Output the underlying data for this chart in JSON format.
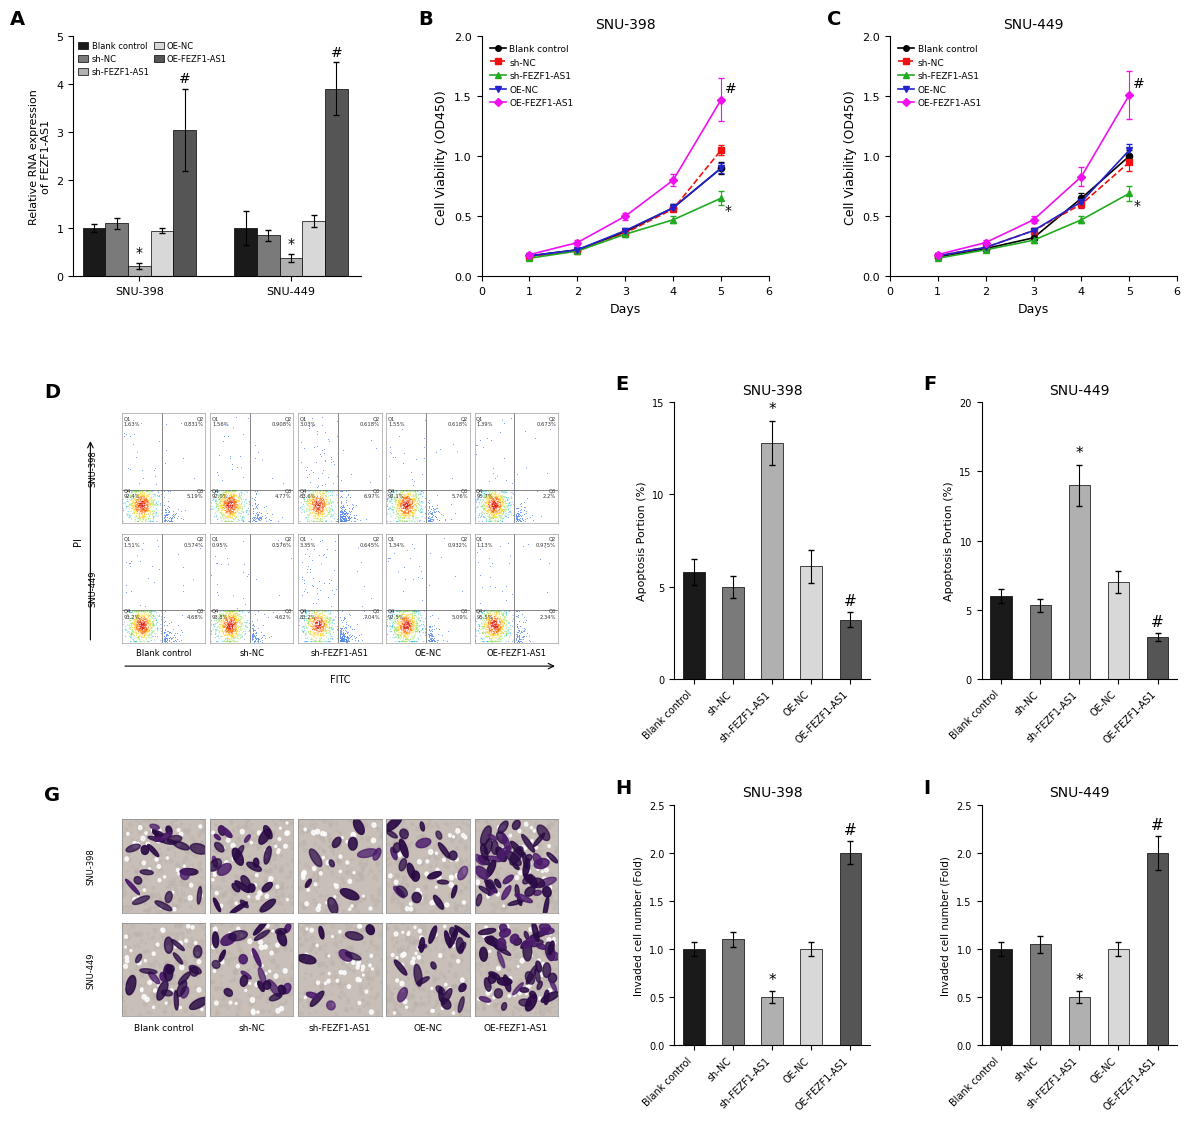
{
  "panel_A": {
    "ylabel": "Relative RNA expression\nof FEZF1-AS1",
    "categories": [
      "Blank control",
      "sh-NC",
      "sh-FEZF1-AS1",
      "OE-NC",
      "OE-FEZF1-AS1"
    ],
    "bar_colors": [
      "#1a1a1a",
      "#7a7a7a",
      "#b0b0b0",
      "#d8d8d8",
      "#555555"
    ],
    "snu398_values": [
      1.0,
      1.1,
      0.22,
      0.95,
      3.05
    ],
    "snu398_errors": [
      0.08,
      0.12,
      0.06,
      0.06,
      0.85
    ],
    "snu449_values": [
      1.0,
      0.85,
      0.38,
      1.15,
      3.9
    ],
    "snu449_errors": [
      0.35,
      0.12,
      0.08,
      0.12,
      0.55
    ],
    "ylim": [
      0,
      5
    ],
    "yticks": [
      0,
      1,
      2,
      3,
      4,
      5
    ]
  },
  "panel_B": {
    "title": "SNU-398",
    "xlabel": "Days",
    "ylabel": "Cell Viability (OD450)",
    "days": [
      1,
      2,
      3,
      4,
      5
    ],
    "blank_control": [
      0.17,
      0.22,
      0.37,
      0.57,
      0.9
    ],
    "blank_control_err": [
      0.01,
      0.015,
      0.02,
      0.03,
      0.05
    ],
    "sh_NC": [
      0.16,
      0.21,
      0.36,
      0.56,
      1.05
    ],
    "sh_NC_err": [
      0.01,
      0.015,
      0.02,
      0.02,
      0.04
    ],
    "sh_FEZF1": [
      0.15,
      0.21,
      0.35,
      0.47,
      0.65
    ],
    "sh_FEZF1_err": [
      0.01,
      0.015,
      0.02,
      0.03,
      0.06
    ],
    "OE_NC": [
      0.17,
      0.22,
      0.38,
      0.57,
      0.9
    ],
    "OE_NC_err": [
      0.01,
      0.015,
      0.02,
      0.03,
      0.04
    ],
    "OE_FEZF1": [
      0.18,
      0.28,
      0.5,
      0.8,
      1.47
    ],
    "OE_FEZF1_err": [
      0.01,
      0.02,
      0.03,
      0.05,
      0.18
    ],
    "ylim": [
      0,
      2.0
    ],
    "yticks": [
      0.0,
      0.5,
      1.0,
      1.5,
      2.0
    ],
    "xlim": [
      0,
      6
    ]
  },
  "panel_C": {
    "title": "SNU-449",
    "xlabel": "Days",
    "ylabel": "Cell Viability (OD450)",
    "days": [
      1,
      2,
      3,
      4,
      5
    ],
    "blank_control": [
      0.16,
      0.23,
      0.32,
      0.65,
      1.0
    ],
    "blank_control_err": [
      0.01,
      0.015,
      0.02,
      0.04,
      0.05
    ],
    "sh_NC": [
      0.17,
      0.24,
      0.38,
      0.6,
      0.95
    ],
    "sh_NC_err": [
      0.01,
      0.015,
      0.02,
      0.03,
      0.07
    ],
    "sh_FEZF1": [
      0.15,
      0.22,
      0.3,
      0.47,
      0.69
    ],
    "sh_FEZF1_err": [
      0.01,
      0.015,
      0.02,
      0.03,
      0.06
    ],
    "OE_NC": [
      0.17,
      0.24,
      0.38,
      0.62,
      1.05
    ],
    "OE_NC_err": [
      0.01,
      0.015,
      0.02,
      0.04,
      0.05
    ],
    "OE_FEZF1": [
      0.18,
      0.28,
      0.47,
      0.83,
      1.51
    ],
    "OE_FEZF1_err": [
      0.01,
      0.02,
      0.03,
      0.08,
      0.2
    ],
    "ylim": [
      0,
      2.0
    ],
    "yticks": [
      0.0,
      0.5,
      1.0,
      1.5,
      2.0
    ],
    "xlim": [
      0,
      6
    ]
  },
  "panel_E": {
    "title": "SNU-398",
    "ylabel": "Apoptosis Portion (%)",
    "categories": [
      "Blank control",
      "sh-NC",
      "sh-FEZF1-AS1",
      "OE-NC",
      "OE-FEZF1-AS1"
    ],
    "values": [
      5.8,
      5.0,
      12.8,
      6.1,
      3.2
    ],
    "errors": [
      0.7,
      0.6,
      1.2,
      0.9,
      0.4
    ],
    "bar_colors": [
      "#1a1a1a",
      "#7a7a7a",
      "#b0b0b0",
      "#d8d8d8",
      "#555555"
    ],
    "ylim": [
      0,
      15
    ],
    "yticks": [
      0,
      5,
      10,
      15
    ],
    "star_idx": 2,
    "hash_idx": 4
  },
  "panel_F": {
    "title": "SNU-449",
    "ylabel": "Apoptosis Portion (%)",
    "categories": [
      "Blank control",
      "sh-NC",
      "sh-FEZF1-AS1",
      "OE-NC",
      "OE-FEZF1-AS1"
    ],
    "values": [
      6.0,
      5.3,
      14.0,
      7.0,
      3.0
    ],
    "errors": [
      0.5,
      0.5,
      1.5,
      0.8,
      0.3
    ],
    "bar_colors": [
      "#1a1a1a",
      "#7a7a7a",
      "#b0b0b0",
      "#d8d8d8",
      "#555555"
    ],
    "ylim": [
      0,
      20
    ],
    "yticks": [
      0,
      5,
      10,
      15,
      20
    ],
    "star_idx": 2,
    "hash_idx": 4
  },
  "panel_H": {
    "title": "SNU-398",
    "ylabel": "Invaded cell number (Fold)",
    "categories": [
      "Blank control",
      "sh-NC",
      "sh-FEZF1-AS1",
      "OE-NC",
      "OE-FEZF1-AS1"
    ],
    "values": [
      1.0,
      1.1,
      0.5,
      1.0,
      2.0
    ],
    "errors": [
      0.07,
      0.08,
      0.06,
      0.07,
      0.12
    ],
    "bar_colors": [
      "#1a1a1a",
      "#7a7a7a",
      "#b0b0b0",
      "#d8d8d8",
      "#555555"
    ],
    "ylim": [
      0,
      2.5
    ],
    "yticks": [
      0.0,
      0.5,
      1.0,
      1.5,
      2.0,
      2.5
    ],
    "star_idx": 2,
    "hash_idx": 4
  },
  "panel_I": {
    "title": "SNU-449",
    "ylabel": "Invaded cell number (Fold)",
    "categories": [
      "Blank control",
      "sh-NC",
      "sh-FEZF1-AS1",
      "OE-NC",
      "OE-FEZF1-AS1"
    ],
    "values": [
      1.0,
      1.05,
      0.5,
      1.0,
      2.0
    ],
    "errors": [
      0.07,
      0.09,
      0.06,
      0.07,
      0.18
    ],
    "bar_colors": [
      "#1a1a1a",
      "#7a7a7a",
      "#b0b0b0",
      "#d8d8d8",
      "#555555"
    ],
    "ylim": [
      0,
      2.5
    ],
    "yticks": [
      0.0,
      0.5,
      1.0,
      1.5,
      2.0,
      2.5
    ],
    "star_idx": 2,
    "hash_idx": 4
  },
  "line_colors": {
    "Blank control": "#000000",
    "sh-NC": "#ee1111",
    "sh-FEZF1-AS1": "#22aa22",
    "OE-NC": "#2222cc",
    "OE-FEZF1-AS1": "#ee11ee"
  },
  "line_styles": {
    "Blank control": "-",
    "sh-NC": "--",
    "sh-FEZF1-AS1": "-",
    "OE-NC": "-",
    "OE-FEZF1-AS1": "-"
  },
  "markers": {
    "Blank control": "o",
    "sh-NC": "s",
    "sh-FEZF1-AS1": "^",
    "OE-NC": "v",
    "OE-FEZF1-AS1": "D"
  },
  "flow_data": {
    "snu398": {
      "q1": [
        1.63,
        1.56,
        3.03,
        1.55,
        1.39
      ],
      "q2": [
        0.831,
        0.908,
        0.618,
        0.618,
        0.673
      ],
      "q3": [
        5.19,
        4.77,
        6.97,
        5.76,
        2.2
      ],
      "q4": [
        92.4,
        92.0,
        83.6,
        92.1,
        95.7
      ]
    },
    "snu449": {
      "q1": [
        1.51,
        0.95,
        3.35,
        1.34,
        1.13
      ],
      "q2": [
        0.574,
        0.576,
        0.645,
        0.932,
        0.975
      ],
      "q3": [
        4.68,
        4.62,
        7.04,
        5.09,
        2.34
      ],
      "q4": [
        93.2,
        93.8,
        83.2,
        92.5,
        95.5
      ]
    }
  }
}
